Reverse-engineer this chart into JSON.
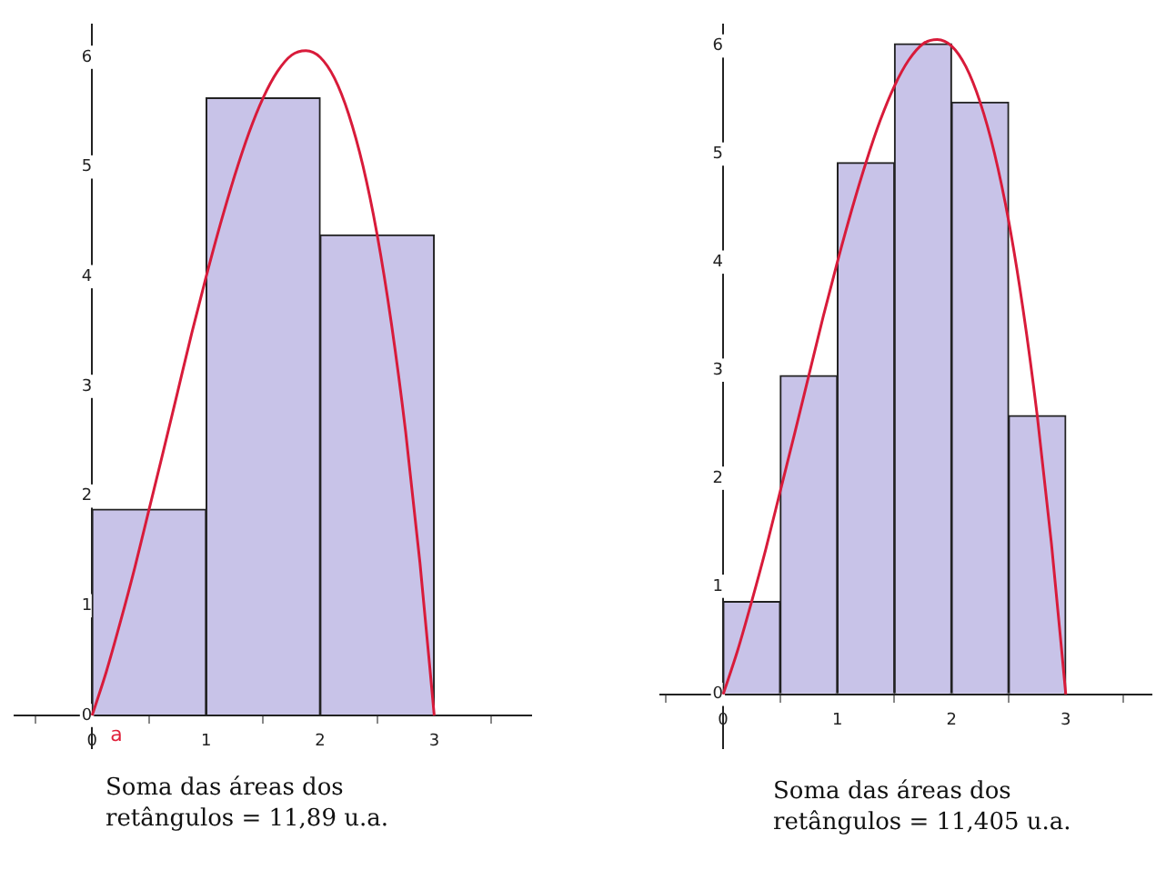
{
  "chart_data": [
    {
      "type": "histogram",
      "xlim": [
        -0.68,
        3.85
      ],
      "ylim": [
        -0.3,
        6.3
      ],
      "xticks": [
        0,
        1,
        2,
        3
      ],
      "yticks": [
        0,
        1,
        2,
        3,
        4,
        5,
        6
      ],
      "grid": false,
      "series": [
        {
          "type": "histogram",
          "color": "#c8c3e8",
          "bins": [
            0,
            1,
            2,
            3
          ],
          "values": [
            1.88,
            5.63,
            4.38
          ]
        },
        {
          "type": "line",
          "color": "#d81b3a",
          "x": [
            0,
            0.125,
            0.25,
            0.375,
            0.5,
            0.625,
            0.75,
            0.875,
            1,
            1.125,
            1.25,
            1.375,
            1.5,
            1.625,
            1.75,
            1.875,
            2,
            2.125,
            2.25,
            2.375,
            2.5,
            2.625,
            2.75,
            2.875,
            3
          ],
          "values": [
            0,
            0.4,
            0.86,
            1.35,
            1.88,
            2.41,
            2.95,
            3.49,
            4,
            4.48,
            4.92,
            5.31,
            5.63,
            5.87,
            6.02,
            6.06,
            6,
            5.81,
            5.48,
            5.01,
            4.38,
            3.57,
            2.58,
            1.39,
            0
          ]
        }
      ],
      "annotations": [
        {
          "text": "a",
          "x": 0,
          "y": 0
        },
        "Soma das áreas dos\nretângulos = 11,89 u.a."
      ]
    },
    {
      "type": "histogram",
      "xlim": [
        -0.55,
        3.75
      ],
      "ylim": [
        -0.5,
        6.2
      ],
      "xticks": [
        0,
        1,
        2,
        3
      ],
      "yticks": [
        0,
        1,
        2,
        3,
        4,
        5,
        6
      ],
      "grid": false,
      "series": [
        {
          "type": "histogram",
          "color": "#c8c3e8",
          "bins": [
            0,
            0.5,
            1,
            1.5,
            2,
            2.5,
            3
          ],
          "values": [
            0.86,
            2.95,
            4.92,
            6.02,
            5.48,
            2.58
          ]
        },
        {
          "type": "line",
          "color": "#d81b3a",
          "x": [
            0,
            0.125,
            0.25,
            0.375,
            0.5,
            0.625,
            0.75,
            0.875,
            1,
            1.125,
            1.25,
            1.375,
            1.5,
            1.625,
            1.75,
            1.875,
            2,
            2.125,
            2.25,
            2.375,
            2.5,
            2.625,
            2.75,
            2.875,
            3
          ],
          "values": [
            0,
            0.4,
            0.86,
            1.35,
            1.88,
            2.41,
            2.95,
            3.49,
            4,
            4.48,
            4.92,
            5.31,
            5.63,
            5.87,
            6.02,
            6.06,
            6,
            5.81,
            5.48,
            5.01,
            4.38,
            3.57,
            2.58,
            1.39,
            0
          ]
        }
      ],
      "annotations": [
        "Soma das áreas dos\nretângulos = 11,405 u.a."
      ]
    }
  ]
}
